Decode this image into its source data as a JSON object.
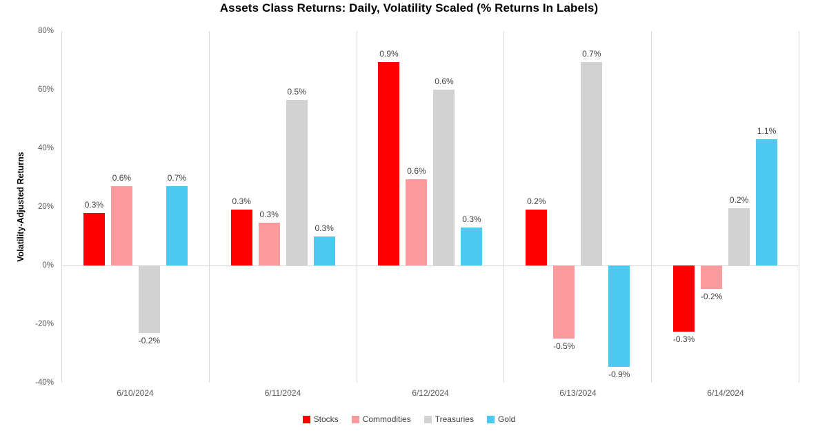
{
  "title": "Assets Class Returns: Daily, Volatility Scaled (% Returns In Labels)",
  "theme": {
    "background": "#FFFFFF",
    "separator_line": "#D9D9D9",
    "tick_text": "#595959",
    "data_label_text": "#404040",
    "title_text": "#000000"
  },
  "chart_data": {
    "type": "bar",
    "title": "Assets Class Returns: Daily, Volatility Scaled (% Returns In Labels)",
    "xlabel": "",
    "ylabel": "Volatility-Adjusted Returns",
    "ylim": [
      -40,
      80
    ],
    "y_tick_labels": [
      "80%",
      "60%",
      "40%",
      "20%",
      "0%",
      "-20%",
      "-40%"
    ],
    "categories": [
      "6/10/2024",
      "6/11/2024",
      "6/12/2024",
      "6/13/2024",
      "6/14/2024"
    ],
    "series": [
      {
        "name": "Stocks",
        "color": "#FE0000",
        "vol_adjusted_values_pct": [
          18,
          19,
          69.5,
          19,
          -22.5
        ],
        "return_labels": [
          "0.3%",
          "0.3%",
          "0.9%",
          "0.2%",
          "-0.3%"
        ]
      },
      {
        "name": "Commodities",
        "color": "#FB9B9D",
        "vol_adjusted_values_pct": [
          27,
          14.5,
          29.5,
          -25,
          -8
        ],
        "return_labels": [
          "0.6%",
          "0.3%",
          "0.6%",
          "-0.5%",
          "-0.2%"
        ]
      },
      {
        "name": "Treasuries",
        "color": "#D2D2D2",
        "vol_adjusted_values_pct": [
          -23,
          56.5,
          60,
          69.5,
          19.5
        ],
        "return_labels": [
          "-0.2%",
          "0.5%",
          "0.6%",
          "0.7%",
          "0.2%"
        ]
      },
      {
        "name": "Gold",
        "color": "#4DC8F1",
        "vol_adjusted_values_pct": [
          27,
          10,
          13,
          -34.5,
          43
        ],
        "return_labels": [
          "0.7%",
          "0.3%",
          "0.3%",
          "-0.9%",
          "1.1%"
        ]
      }
    ],
    "legend_position": "bottom",
    "grid": {
      "horizontal": false,
      "vertical_category_separators": true
    }
  }
}
